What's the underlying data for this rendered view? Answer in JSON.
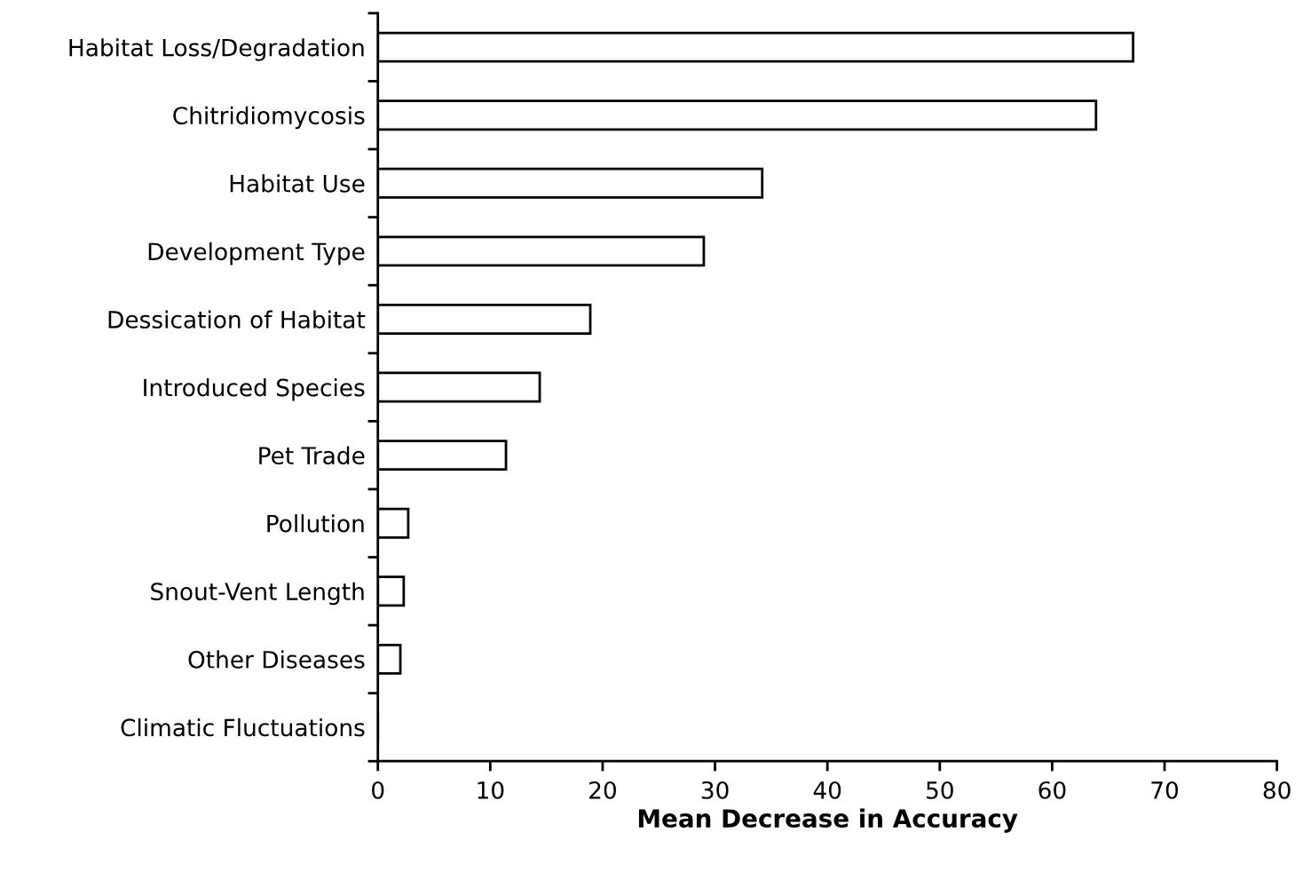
{
  "chart_data": {
    "type": "bar",
    "orientation": "horizontal",
    "xlabel": "Mean Decrease in Accuracy",
    "categories": [
      "Habitat Loss/Degradation",
      "Chitridiomycosis",
      "Habitat Use",
      "Development Type",
      "Dessication of Habitat",
      "Introduced Species",
      "Pet Trade",
      "Pollution",
      "Snout-Vent Length",
      "Other Diseases",
      "Climatic Fluctuations"
    ],
    "values": [
      67.2,
      63.9,
      34.2,
      29.0,
      18.9,
      14.4,
      11.4,
      2.7,
      2.3,
      2.0,
      0
    ],
    "color": "#ffffff",
    "xlim": [
      0,
      80
    ],
    "xticks": [
      0,
      10,
      20,
      30,
      40,
      50,
      60,
      70,
      80
    ],
    "grid": false,
    "legend": false
  }
}
